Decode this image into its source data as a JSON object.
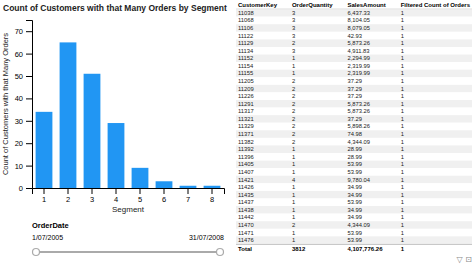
{
  "chart_data": {
    "type": "bar",
    "title": "Count of Customers with that Many Orders by Segment",
    "xlabel": "Segment",
    "ylabel": "Count of Customers with that Many Orders",
    "categories": [
      "1",
      "2",
      "3",
      "4",
      "5",
      "6",
      "7",
      "8"
    ],
    "values": [
      34,
      65,
      51,
      29,
      9,
      3,
      1,
      1
    ],
    "color": "#2196F3",
    "ylim": [
      0,
      75
    ],
    "yticks": [
      0,
      10,
      20,
      30,
      40,
      50,
      60,
      70
    ]
  },
  "slider": {
    "label": "OrderDate",
    "start": "1/07/2005",
    "end": "31/07/2008"
  },
  "table": {
    "headers": [
      "CustomerKey",
      "OrderQuantity",
      "SalesAmount",
      "Filtered Count of Orders"
    ],
    "rows": [
      [
        "11038",
        "3",
        "6,437.33",
        "1"
      ],
      [
        "11068",
        "3",
        "8,104.05",
        "1"
      ],
      [
        "11106",
        "3",
        "8,079.05",
        "1"
      ],
      [
        "11122",
        "3",
        "42.93",
        "1"
      ],
      [
        "11129",
        "2",
        "5,873.26",
        "1"
      ],
      [
        "11134",
        "3",
        "4,911.83",
        "1"
      ],
      [
        "11152",
        "1",
        "2,294.99",
        "1"
      ],
      [
        "11154",
        "1",
        "2,319.99",
        "1"
      ],
      [
        "11155",
        "1",
        "2,319.99",
        "1"
      ],
      [
        "11205",
        "2",
        "37.29",
        "1"
      ],
      [
        "11209",
        "2",
        "37.29",
        "1"
      ],
      [
        "11226",
        "2",
        "37.29",
        "1"
      ],
      [
        "11291",
        "2",
        "5,873.26",
        "1"
      ],
      [
        "11317",
        "2",
        "5,873.26",
        "1"
      ],
      [
        "11321",
        "2",
        "37.29",
        "1"
      ],
      [
        "11329",
        "2",
        "5,898.26",
        "1"
      ],
      [
        "11371",
        "2",
        "74.98",
        "1"
      ],
      [
        "11382",
        "2",
        "4,344.09",
        "1"
      ],
      [
        "11392",
        "1",
        "28.99",
        "1"
      ],
      [
        "11396",
        "1",
        "28.99",
        "1"
      ],
      [
        "11405",
        "1",
        "53.99",
        "1"
      ],
      [
        "11407",
        "1",
        "53.99",
        "1"
      ],
      [
        "11421",
        "4",
        "9,780.04",
        "1"
      ],
      [
        "11426",
        "1",
        "34.99",
        "1"
      ],
      [
        "11435",
        "1",
        "34.99",
        "1"
      ],
      [
        "11437",
        "1",
        "53.99",
        "1"
      ],
      [
        "11438",
        "1",
        "34.99",
        "1"
      ],
      [
        "11442",
        "1",
        "34.99",
        "1"
      ],
      [
        "11470",
        "2",
        "4,344.09",
        "1"
      ],
      [
        "11471",
        "1",
        "53.99",
        "1"
      ],
      [
        "11476",
        "1",
        "53.99",
        "1"
      ]
    ],
    "total": [
      "Total",
      "3812",
      "4,107,776.26",
      "1"
    ]
  },
  "filter_icons": "▽  ⊡"
}
